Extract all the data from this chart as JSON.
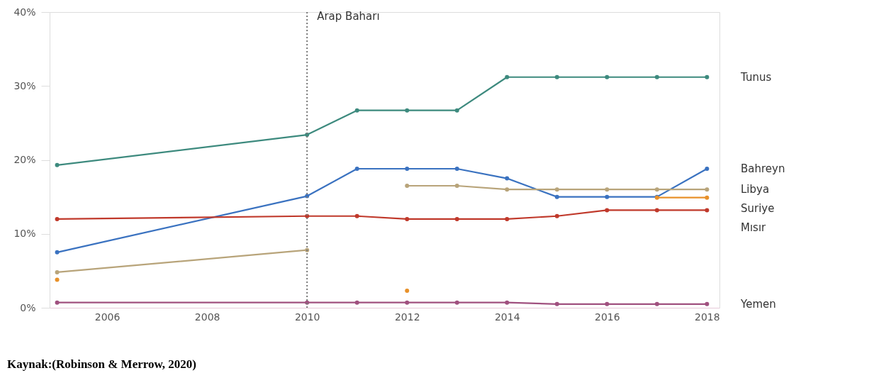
{
  "chart_data": {
    "type": "line",
    "series": [
      {
        "name": "Tunus",
        "color": "#3d8a7e",
        "x": [
          2005,
          2010,
          2011,
          2012,
          2013,
          2014,
          2015,
          2016,
          2017,
          2018
        ],
        "values": [
          19.3,
          23.4,
          26.7,
          26.7,
          26.7,
          31.2,
          31.2,
          31.2,
          31.2,
          31.2
        ]
      },
      {
        "name": "Bahreyn",
        "color": "#3a72c0",
        "x": [
          2005,
          2010,
          2011,
          2012,
          2013,
          2014,
          2015,
          2016,
          2017,
          2018
        ],
        "values": [
          7.5,
          15.1,
          18.8,
          18.8,
          18.8,
          17.5,
          15.0,
          15.0,
          15.0,
          18.8
        ]
      },
      {
        "name": "Libya",
        "color": "#b8a47a",
        "x": [
          2005,
          2010,
          2011,
          2012,
          2013,
          2014,
          2015,
          2016,
          2017,
          2018
        ],
        "values": [
          4.8,
          7.8,
          null,
          16.5,
          16.5,
          16.0,
          16.0,
          16.0,
          16.0,
          16.0
        ]
      },
      {
        "name": "Mısır",
        "color": "#c0392b",
        "x": [
          2005,
          2010,
          2011,
          2012,
          2013,
          2014,
          2015,
          2016,
          2017,
          2018
        ],
        "values": [
          12.0,
          12.4,
          12.4,
          12.0,
          12.0,
          12.0,
          12.4,
          13.2,
          13.2,
          13.2
        ]
      },
      {
        "name": "Suriye",
        "color": "#e8912a",
        "x": [
          2005,
          2010,
          2011,
          2012,
          2013,
          2014,
          2015,
          2016,
          2017,
          2018
        ],
        "values": [
          3.8,
          null,
          null,
          2.3,
          null,
          null,
          null,
          null,
          14.9,
          14.9
        ]
      },
      {
        "name": "Yemen",
        "color": "#a0507f",
        "x": [
          2005,
          2010,
          2011,
          2012,
          2013,
          2014,
          2015,
          2016,
          2017,
          2018
        ],
        "values": [
          0.7,
          0.7,
          0.7,
          0.7,
          0.7,
          0.7,
          0.5,
          0.5,
          0.5,
          0.5
        ]
      }
    ],
    "xlim": [
      2004.85,
      2018.25
    ],
    "xticks": [
      2006,
      2008,
      2010,
      2012,
      2014,
      2016,
      2018
    ],
    "ylim": [
      0,
      40
    ],
    "yticks": [
      {
        "value": 0,
        "label": "0%"
      },
      {
        "value": 10,
        "label": "10%"
      },
      {
        "value": 20,
        "label": "20%"
      },
      {
        "value": 30,
        "label": "30%"
      },
      {
        "value": 40,
        "label": "40%"
      }
    ],
    "ref_lines": [
      {
        "axis": "x",
        "value": 2010,
        "label": "Arap Baharı",
        "color": "#777777",
        "line_style": "dotted"
      }
    ],
    "annotations": [
      "Kaynak:(Robinson & Merrow, 2020)"
    ],
    "marker": "circle",
    "line_style": "solid",
    "grid": false
  }
}
